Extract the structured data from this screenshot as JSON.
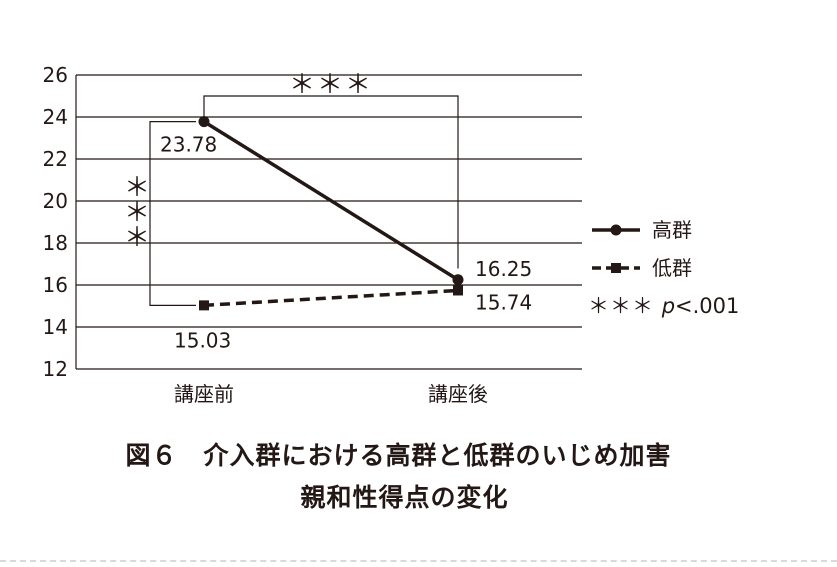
{
  "chart_data": {
    "type": "line",
    "categories": [
      "講座前",
      "講座後"
    ],
    "ylim": [
      12,
      26
    ],
    "yticks": [
      "12",
      "14",
      "16",
      "18",
      "20",
      "22",
      "24",
      "26"
    ],
    "grid": true,
    "legend_position": "right",
    "series": [
      {
        "name": "高群",
        "values": [
          23.78,
          16.25
        ],
        "labels": [
          "23.78",
          "16.25"
        ],
        "style": "solid",
        "marker": "circle",
        "color": "#231815"
      },
      {
        "name": "低群",
        "values": [
          15.03,
          15.74
        ],
        "labels": [
          "15.03",
          "15.74"
        ],
        "style": "dashed",
        "marker": "square",
        "color": "#231815"
      }
    ],
    "annotations": {
      "top_bracket": "＊＊＊",
      "side_bracket": "＊＊＊",
      "significance_note": "＊＊＊ p<.001"
    }
  },
  "caption": {
    "line1": "図６　介入群における高群と低群のいじめ加害",
    "line2": "親和性得点の変化"
  }
}
